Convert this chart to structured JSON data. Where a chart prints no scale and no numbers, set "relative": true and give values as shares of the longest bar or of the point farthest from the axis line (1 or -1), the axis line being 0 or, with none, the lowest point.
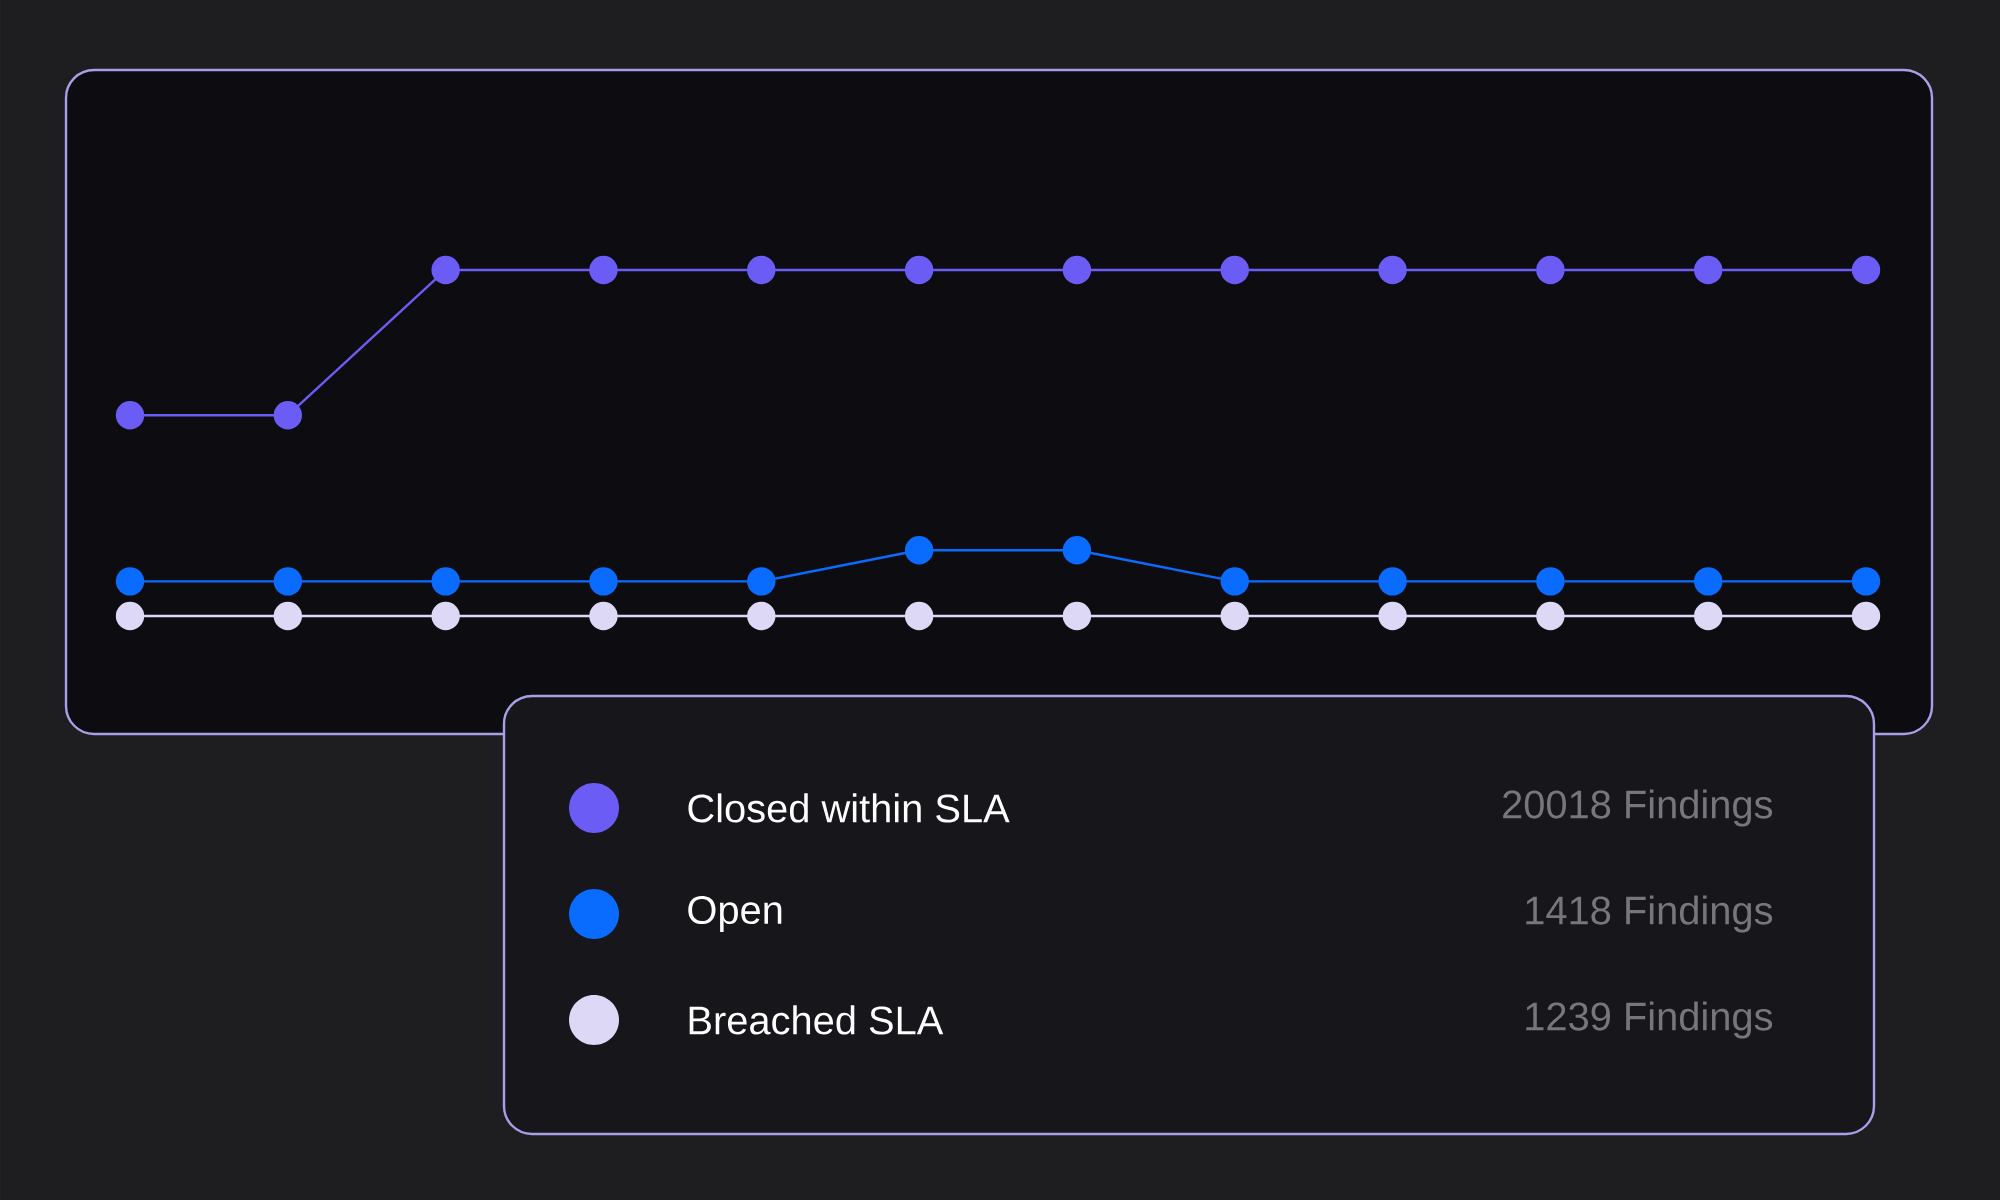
{
  "chart_data": {
    "type": "line",
    "relative": true,
    "categories": [
      null,
      null,
      null,
      null,
      null,
      null,
      null,
      null,
      null,
      null,
      null,
      null
    ],
    "series": [
      {
        "name": "Closed within SLA",
        "color": "#6b5cf5",
        "values": [
          0.58,
          0.58,
          1,
          1,
          1,
          1,
          1,
          1,
          1,
          1,
          1,
          1
        ]
      },
      {
        "name": "Open",
        "color": "#0a6cff",
        "values": [
          0.1,
          0.1,
          0.1,
          0.1,
          0.1,
          0.19,
          0.19,
          0.1,
          0.1,
          0.1,
          0.1,
          0.1
        ]
      },
      {
        "name": "Breached SLA",
        "color": "#dcd8f5",
        "values": [
          0,
          0,
          0,
          0,
          0,
          0,
          0,
          0,
          0,
          0,
          0,
          0
        ]
      }
    ],
    "annotations": [
      "20018 Findings",
      "1418 Findings",
      "1239 Findings"
    ],
    "legend": "bottom",
    "marker": "circle",
    "line_style": "solid"
  }
}
